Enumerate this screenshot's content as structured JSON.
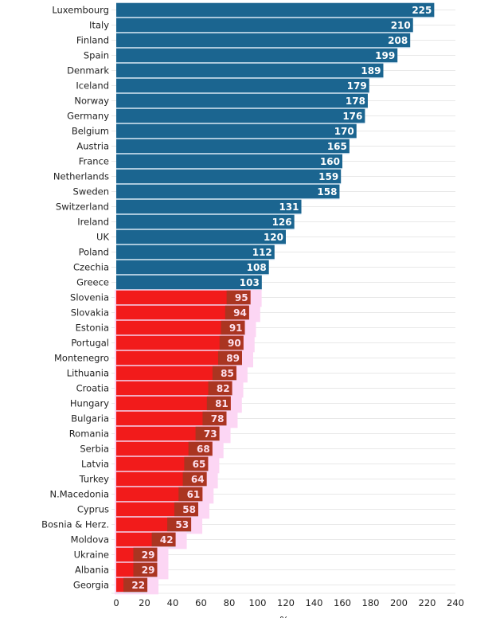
{
  "chart_data": {
    "type": "bar",
    "orientation": "horizontal",
    "title": "",
    "xlabel": "%",
    "ylabel": "",
    "xlim": [
      0,
      240
    ],
    "xticks": [
      0,
      20,
      40,
      60,
      80,
      100,
      120,
      140,
      160,
      180,
      200,
      220,
      240
    ],
    "grid": true,
    "legend": null,
    "threshold": 100,
    "colors": {
      "above": "#1b6590",
      "below": "#f21b1b",
      "below_label_bg": "#9e3a22",
      "below_halo": "#fcd6f4",
      "above_text": "#ffffff",
      "below_text": "#fde0ee",
      "grid": "#e8e8e8",
      "separator": "#cfe3f3"
    },
    "categories": [
      "Luxembourg",
      "Italy",
      "Finland",
      "Spain",
      "Denmark",
      "Iceland",
      "Norway",
      "Germany",
      "Belgium",
      "Austria",
      "France",
      "Netherlands",
      "Sweden",
      "Switzerland",
      "Ireland",
      "UK",
      "Poland",
      "Czechia",
      "Greece",
      "Slovenia",
      "Slovakia",
      "Estonia",
      "Portugal",
      "Montenegro",
      "Lithuania",
      "Croatia",
      "Hungary",
      "Bulgaria",
      "Romania",
      "Serbia",
      "Latvia",
      "Turkey",
      "N.Macedonia",
      "Cyprus",
      "Bosnia & Herz.",
      "Moldova",
      "Ukraine",
      "Albania",
      "Georgia"
    ],
    "values": [
      225,
      210,
      208,
      199,
      189,
      179,
      178,
      176,
      170,
      165,
      160,
      159,
      158,
      131,
      126,
      120,
      112,
      108,
      103,
      95,
      94,
      91,
      90,
      89,
      85,
      82,
      81,
      78,
      73,
      68,
      65,
      64,
      61,
      58,
      53,
      42,
      29,
      29,
      22
    ]
  }
}
